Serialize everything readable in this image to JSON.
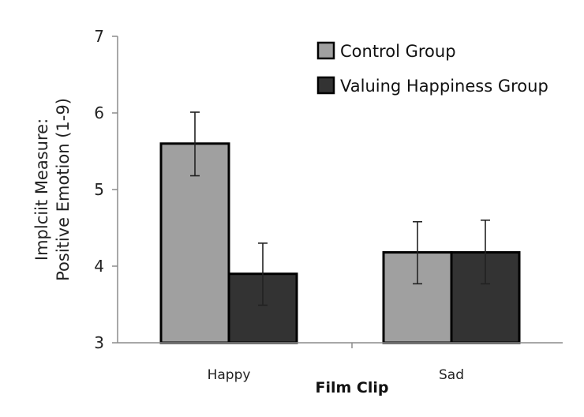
{
  "chart_data": {
    "type": "bar",
    "title": "",
    "xlabel": "Film Clip",
    "ylabel_lines": [
      "Implciit Measure:",
      "Positive Emotion (1-9)"
    ],
    "categories": [
      "Happy",
      "Sad"
    ],
    "ylim": [
      3,
      7
    ],
    "yticks": [
      "3",
      "4",
      "5",
      "6",
      "7"
    ],
    "grid": false,
    "legend_position": "top-right",
    "series": [
      {
        "name": "Control Group",
        "color": "#a0a0a0",
        "values": [
          5.6,
          4.18
        ],
        "error_low": [
          5.18,
          3.77
        ],
        "error_high": [
          6.01,
          4.58
        ]
      },
      {
        "name": "Valuing Happiness Group",
        "color": "#333333",
        "values": [
          3.9,
          4.18
        ],
        "error_low": [
          3.49,
          3.77
        ],
        "error_high": [
          4.3,
          4.6
        ]
      }
    ]
  }
}
